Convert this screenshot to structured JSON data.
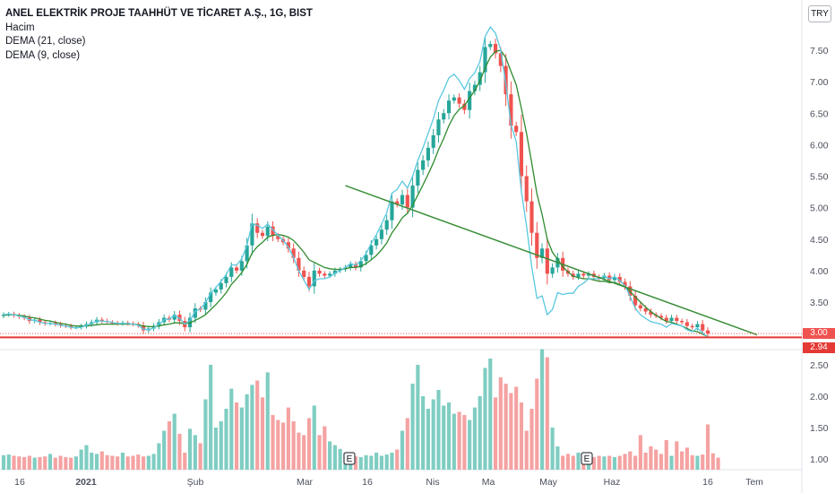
{
  "legend": {
    "title": "ANEL ELEKTRİK PROJE TAAHHÜT VE TİCARET A.Ş., 1G, BIST",
    "volume": "Hacim",
    "dema21": "DEMA (21, close)",
    "dema9": "DEMA (9, close)"
  },
  "currency": "TRY",
  "last_price_label": "3.00",
  "support_price_label": "2.94",
  "earnings_marker": "E",
  "colors": {
    "up": "#26a69a",
    "down": "#ef5350",
    "up_volume": "#7fcdc2",
    "down_volume": "#f5a2a2",
    "dema21": "#2e8b2e",
    "dema9": "#5ac8e0",
    "trendline": "#3a8f3a",
    "support": "#e53935"
  },
  "chart_data": [
    {
      "type": "candlestick",
      "title": "ANEL ELEKTRİK PROJE TAAHHÜT VE TİCARET A.Ş., 1G, BIST",
      "ylim": [
        2.9,
        7.85
      ],
      "y_ticks": [
        "3.50",
        "4.00",
        "4.50",
        "5.00",
        "5.50",
        "6.00",
        "6.50",
        "7.00",
        "7.50"
      ],
      "x_ticks": [
        "16",
        "2021",
        "Şub",
        "Mar",
        "16",
        "Nis",
        "Ma",
        "May",
        "Haz",
        "16",
        "Tem"
      ],
      "closes": [
        3.3,
        3.31,
        3.29,
        3.27,
        3.25,
        3.2,
        3.22,
        3.18,
        3.16,
        3.17,
        3.15,
        3.13,
        3.12,
        3.1,
        3.1,
        3.12,
        3.15,
        3.18,
        3.22,
        3.2,
        3.18,
        3.17,
        3.16,
        3.17,
        3.16,
        3.15,
        3.13,
        3.05,
        3.08,
        3.12,
        3.18,
        3.25,
        3.22,
        3.3,
        3.2,
        3.1,
        3.25,
        3.4,
        3.38,
        3.5,
        3.65,
        3.7,
        3.8,
        3.9,
        4.05,
        4.0,
        4.15,
        4.4,
        4.75,
        4.6,
        4.55,
        4.7,
        4.55,
        4.5,
        4.45,
        4.35,
        4.2,
        4.0,
        3.9,
        3.75,
        4.0,
        3.95,
        3.92,
        3.95,
        4.0,
        4.02,
        4.05,
        4.1,
        4.05,
        4.15,
        4.25,
        4.4,
        4.5,
        4.65,
        4.8,
        5.1,
        5.05,
        5.2,
        5.0,
        5.35,
        5.6,
        5.75,
        5.95,
        6.15,
        6.4,
        6.5,
        6.7,
        6.75,
        6.65,
        6.55,
        6.85,
        6.95,
        7.15,
        7.55,
        7.6,
        7.45,
        7.25,
        6.8,
        6.3,
        6.2,
        5.5,
        5.1,
        4.6,
        4.2,
        4.35,
        3.95,
        4.05,
        4.2,
        4.0,
        3.95,
        3.9,
        3.95,
        3.92,
        3.95,
        3.9,
        3.88,
        3.92,
        3.85,
        3.9,
        3.82,
        3.75,
        3.6,
        3.45,
        3.4,
        3.35,
        3.3,
        3.28,
        3.25,
        3.2,
        3.25,
        3.2,
        3.18,
        3.12,
        3.1,
        3.15,
        3.05,
        3.0
      ],
      "dema21": [
        3.29,
        3.3,
        3.3,
        3.29,
        3.28,
        3.26,
        3.25,
        3.23,
        3.21,
        3.2,
        3.18,
        3.16,
        3.15,
        3.13,
        3.12,
        3.12,
        3.12,
        3.13,
        3.14,
        3.15,
        3.15,
        3.15,
        3.15,
        3.15,
        3.15,
        3.15,
        3.14,
        3.12,
        3.11,
        3.11,
        3.12,
        3.14,
        3.15,
        3.17,
        3.17,
        3.16,
        3.17,
        3.21,
        3.25,
        3.3,
        3.38,
        3.46,
        3.55,
        3.65,
        3.78,
        3.87,
        3.97,
        4.1,
        4.28,
        4.38,
        4.45,
        4.53,
        4.56,
        4.57,
        4.56,
        4.53,
        4.48,
        4.39,
        4.29,
        4.17,
        4.13,
        4.09,
        4.05,
        4.03,
        4.02,
        4.02,
        4.03,
        4.05,
        4.05,
        4.07,
        4.11,
        4.17,
        4.24,
        4.33,
        4.44,
        4.6,
        4.71,
        4.84,
        4.91,
        5.04,
        5.2,
        5.36,
        5.53,
        5.71,
        5.92,
        6.1,
        6.3,
        6.46,
        6.56,
        6.62,
        6.74,
        6.86,
        7.01,
        7.22,
        7.39,
        7.48,
        7.5,
        7.38,
        7.16,
        6.95,
        6.58,
        6.18,
        5.71,
        5.22,
        4.89,
        4.5,
        4.29,
        4.18,
        4.06,
        3.98,
        3.91,
        3.89,
        3.87,
        3.87,
        3.85,
        3.83,
        3.83,
        3.81,
        3.81,
        3.78,
        3.74,
        3.67,
        3.58,
        3.5,
        3.42,
        3.35,
        3.29,
        3.24,
        3.19,
        3.18,
        3.15,
        3.12,
        3.08,
        3.04,
        3.03,
        2.99,
        2.95
      ],
      "dema9": [
        3.3,
        3.31,
        3.3,
        3.28,
        3.26,
        3.22,
        3.21,
        3.18,
        3.16,
        3.16,
        3.15,
        3.13,
        3.12,
        3.1,
        3.09,
        3.1,
        3.13,
        3.16,
        3.2,
        3.2,
        3.19,
        3.18,
        3.16,
        3.16,
        3.16,
        3.15,
        3.13,
        3.07,
        3.06,
        3.09,
        3.15,
        3.22,
        3.23,
        3.29,
        3.24,
        3.15,
        3.21,
        3.35,
        3.39,
        3.49,
        3.64,
        3.73,
        3.83,
        3.94,
        4.09,
        4.09,
        4.19,
        4.4,
        4.75,
        4.72,
        4.67,
        4.74,
        4.65,
        4.56,
        4.48,
        4.37,
        4.21,
        4.0,
        3.85,
        3.7,
        3.84,
        3.87,
        3.87,
        3.9,
        3.96,
        4.0,
        4.05,
        4.11,
        4.09,
        4.16,
        4.27,
        4.43,
        4.57,
        4.74,
        4.92,
        5.23,
        5.29,
        5.42,
        5.31,
        5.5,
        5.75,
        5.95,
        6.18,
        6.41,
        6.7,
        6.87,
        7.06,
        7.12,
        7.02,
        6.88,
        7.05,
        7.14,
        7.32,
        7.72,
        7.87,
        7.77,
        7.51,
        6.96,
        6.31,
        6.05,
        5.26,
        4.71,
        4.06,
        3.56,
        3.6,
        3.3,
        3.38,
        3.65,
        3.62,
        3.64,
        3.64,
        3.75,
        3.8,
        3.87,
        3.87,
        3.87,
        3.91,
        3.87,
        3.9,
        3.84,
        3.76,
        3.59,
        3.4,
        3.3,
        3.24,
        3.19,
        3.17,
        3.15,
        3.1,
        3.16,
        3.14,
        3.12,
        3.06,
        3.03,
        3.09,
        3.01,
        2.94
      ],
      "trendline": {
        "from": [
          "Mar 20",
          5.35
        ],
        "to": [
          "Haz 24",
          2.98
        ]
      },
      "support_level": 2.94,
      "last_close": 3.0
    },
    {
      "type": "bar",
      "title": "Hacim",
      "ylim": [
        0.85,
        2.75
      ],
      "y_ticks": [
        "1.00",
        "1.50",
        "2.00",
        "2.50"
      ],
      "values": [
        1.06,
        1.07,
        1.05,
        1.04,
        1.03,
        1.05,
        1.02,
        1.03,
        1.04,
        1.08,
        1.02,
        1.05,
        1.03,
        1.02,
        1.04,
        1.15,
        1.22,
        1.1,
        1.08,
        1.12,
        1.06,
        1.05,
        1.04,
        1.1,
        1.04,
        1.05,
        1.07,
        1.04,
        1.05,
        1.08,
        1.25,
        1.45,
        1.6,
        1.72,
        1.4,
        1.1,
        1.48,
        1.38,
        1.25,
        1.95,
        2.5,
        1.5,
        1.6,
        1.8,
        2.12,
        1.9,
        1.82,
        2.03,
        2.18,
        2.25,
        1.98,
        2.38,
        1.7,
        1.62,
        1.58,
        1.82,
        1.6,
        1.42,
        1.38,
        1.65,
        1.85,
        1.38,
        1.52,
        1.28,
        1.22,
        1.16,
        1.1,
        1.05,
        1.04,
        1.03,
        1.06,
        1.05,
        1.1,
        1.05,
        1.07,
        1.1,
        1.15,
        1.45,
        1.65,
        2.2,
        2.5,
        2.0,
        1.8,
        1.95,
        2.1,
        1.85,
        1.9,
        1.72,
        1.75,
        1.7,
        1.62,
        1.82,
        2.0,
        2.45,
        2.6,
        1.98,
        2.3,
        2.2,
        2.05,
        2.15,
        1.9,
        1.45,
        1.8,
        2.28,
        2.75,
        2.62,
        1.5,
        1.2,
        1.05,
        1.08,
        1.05,
        1.1,
        1.04,
        1.06,
        1.03,
        1.05,
        1.04,
        1.05,
        1.03,
        1.05,
        1.08,
        1.12,
        1.05,
        1.38,
        1.1,
        1.2,
        1.15,
        1.08,
        1.3,
        1.05,
        1.28,
        1.12,
        1.18,
        1.06,
        1.05,
        1.07,
        1.55,
        1.09,
        1.02
      ],
      "earnings_markers": [
        "Mar 8",
        "Nis 26"
      ]
    }
  ]
}
